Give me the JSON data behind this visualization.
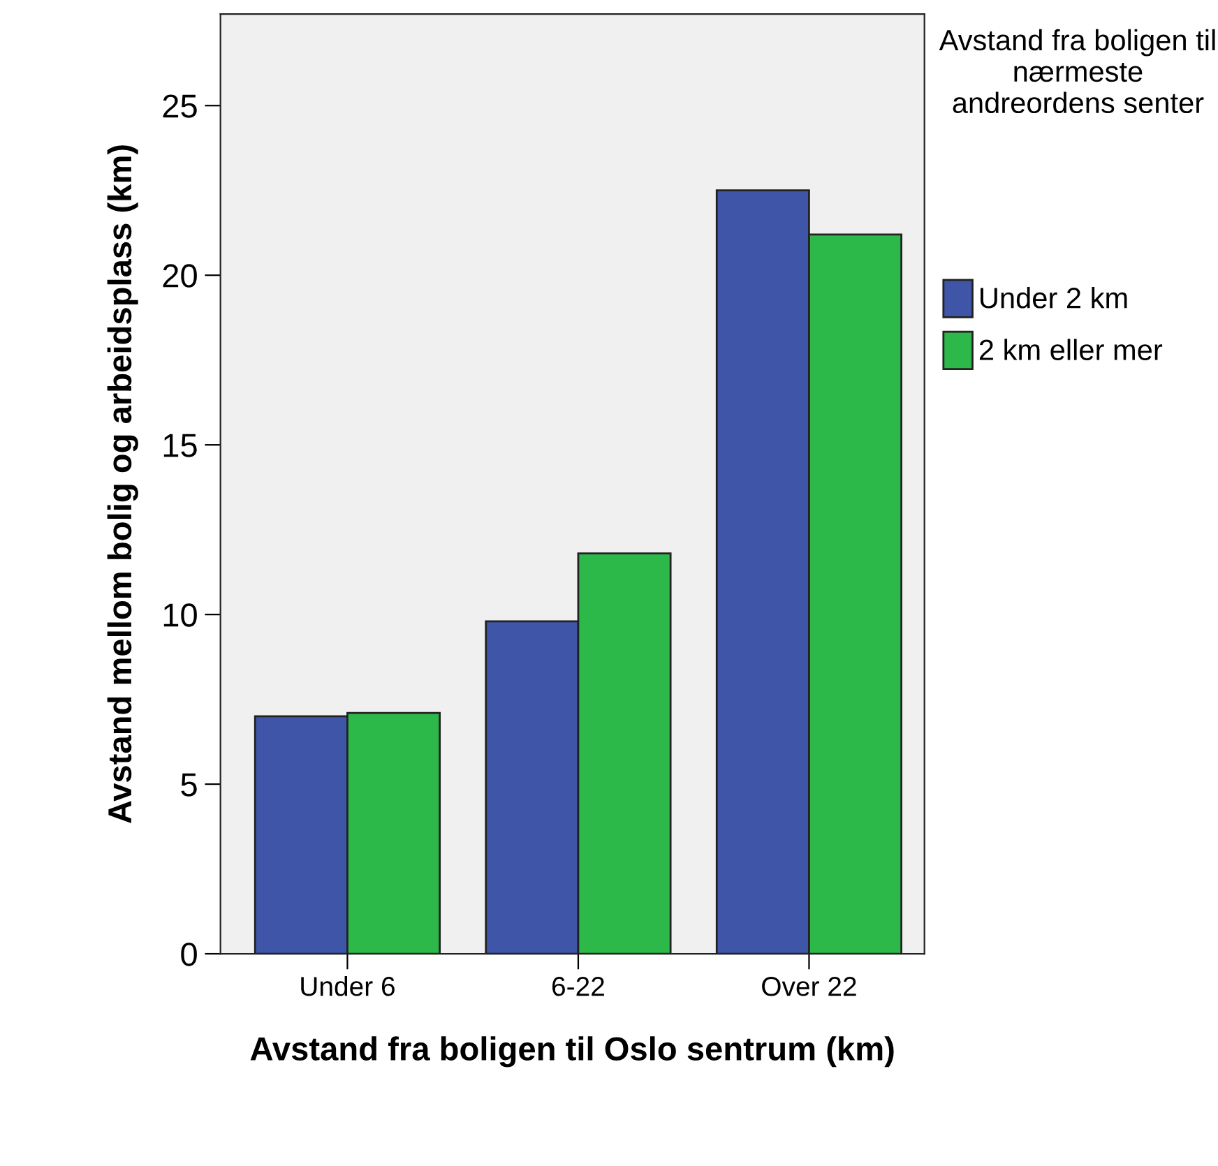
{
  "chart_data": {
    "type": "bar",
    "xlabel": "Avstand fra boligen til Oslo sentrum (km)",
    "ylabel": "Avstand mellom bolig og arbeidsplass (km)",
    "legend_title": "Avstand fra boligen til nærmeste andreordens senter",
    "categories": [
      "Under 6",
      "6-22",
      "Over 22"
    ],
    "series": [
      {
        "name": "Under 2 km",
        "color": "#3e55a8",
        "values": [
          7.0,
          9.8,
          22.5
        ]
      },
      {
        "name": "2 km eller mer",
        "color": "#2db84a",
        "values": [
          7.1,
          11.8,
          21.2
        ]
      }
    ],
    "ylim": [
      0,
      27.7
    ],
    "yticks": [
      0,
      5,
      10,
      15,
      20,
      25
    ],
    "grid": false,
    "legend": "right"
  }
}
